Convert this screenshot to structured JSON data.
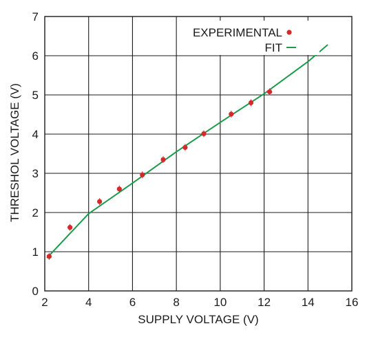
{
  "chart_data": {
    "type": "scatter",
    "title": "",
    "xlabel": "SUPPLY VOLTAGE (V)",
    "ylabel": "THRESHOL VOLTAGE (V)",
    "xlim": [
      2,
      16
    ],
    "ylim": [
      0,
      7
    ],
    "x_ticks": [
      "2",
      "4",
      "6",
      "8",
      "10",
      "12",
      "14",
      "16"
    ],
    "y_ticks": [
      "0",
      "1",
      "2",
      "3",
      "4",
      "5",
      "6",
      "7"
    ],
    "grid": true,
    "legend_position": "top-right",
    "series": [
      {
        "name": "EXPERIMENTAL",
        "kind": "scatter",
        "color": "#d42a2a",
        "x": [
          2.2,
          3.15,
          4.5,
          5.4,
          6.45,
          7.4,
          8.4,
          9.25,
          10.5,
          11.4,
          12.25
        ],
        "y": [
          0.88,
          1.62,
          2.28,
          2.6,
          2.96,
          3.35,
          3.66,
          4.01,
          4.51,
          4.8,
          5.08
        ]
      },
      {
        "name": "FIT",
        "kind": "line",
        "color": "#1a9a4a",
        "x": [
          2.1,
          4.0,
          6.0,
          8.0,
          10.0,
          12.0,
          14.0,
          14.9
        ],
        "y": [
          0.84,
          1.97,
          2.75,
          3.55,
          4.3,
          5.03,
          5.85,
          6.28
        ]
      }
    ]
  }
}
